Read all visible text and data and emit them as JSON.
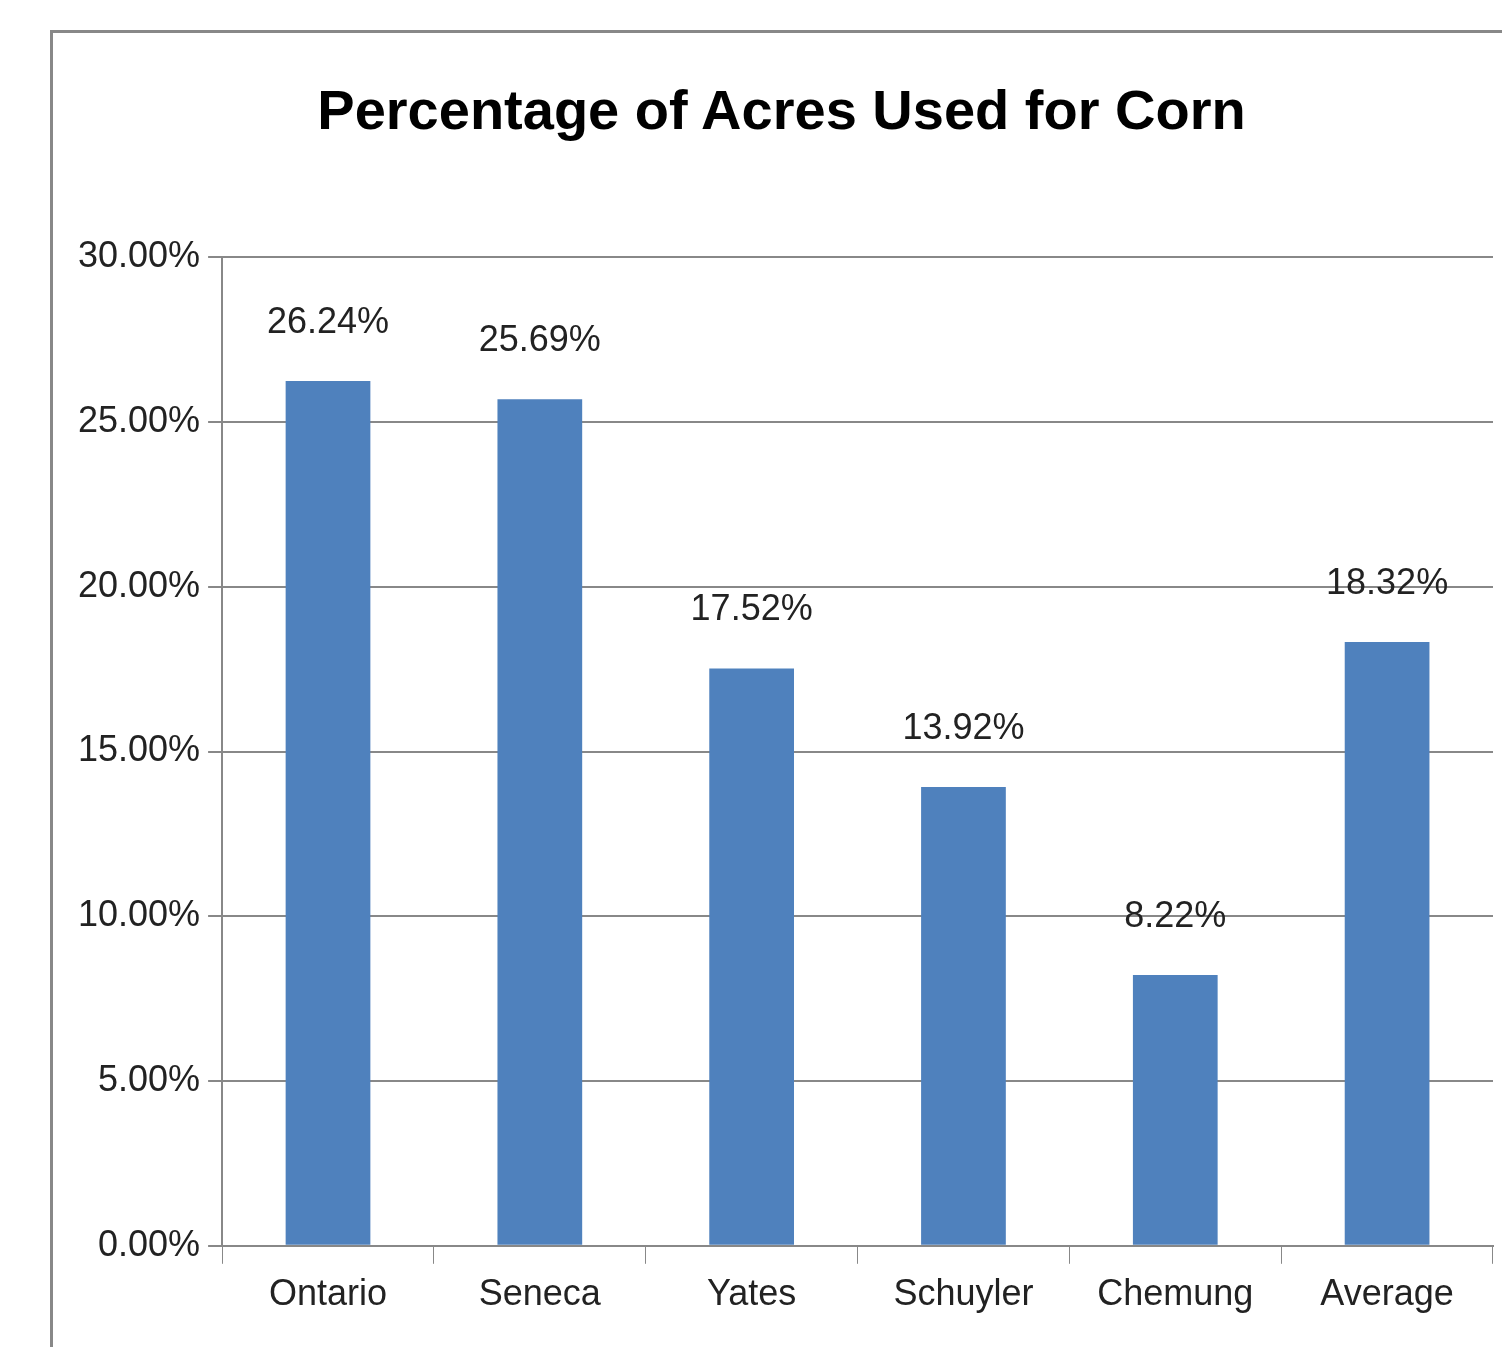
{
  "chart_data": {
    "type": "bar",
    "title": "Percentage of Acres Used for Corn",
    "categories": [
      "Ontario",
      "Seneca",
      "Yates",
      "Schuyler",
      "Chemung",
      "Average"
    ],
    "values": [
      26.24,
      25.69,
      17.52,
      13.92,
      8.22,
      18.32
    ],
    "value_labels": [
      "26.24%",
      "25.69%",
      "17.52%",
      "13.92%",
      "8.22%",
      "18.32%"
    ],
    "color": "#4f81bd",
    "ylim": [
      0,
      30
    ],
    "yticks": [
      {
        "value": 0,
        "label": "0.00%"
      },
      {
        "value": 5,
        "label": "5.00%"
      },
      {
        "value": 10,
        "label": "10.00%"
      },
      {
        "value": 15,
        "label": "15.00%"
      },
      {
        "value": 20,
        "label": "20.00%"
      },
      {
        "value": 25,
        "label": "25.00%"
      },
      {
        "value": 30,
        "label": "30.00%"
      }
    ],
    "grid": "y",
    "legend": false
  }
}
